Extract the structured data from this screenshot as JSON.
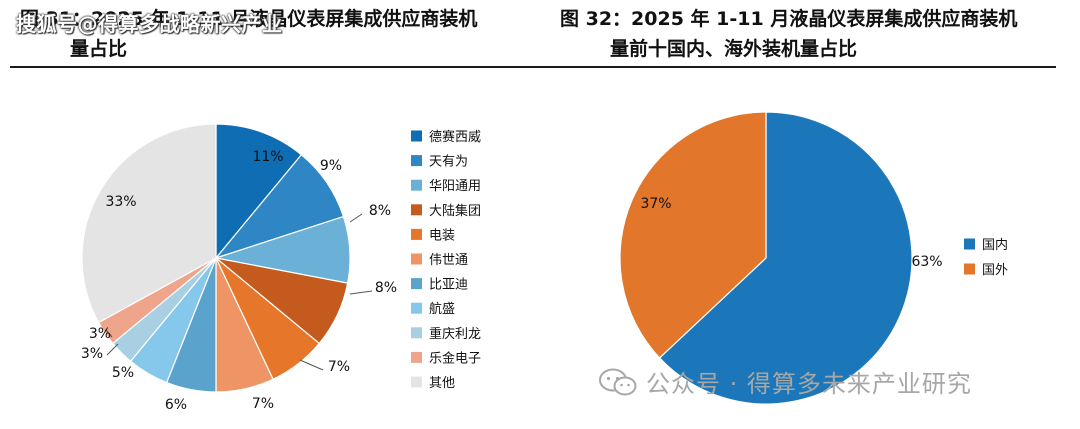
{
  "watermark": {
    "top_left": "搜狐号@得算多战略新兴产业",
    "bottom_right": "公众号 · 得算多未来产业研究"
  },
  "left_title": {
    "line1": "图 31：2025 年 1-11 月液晶仪表屏集成供应商装机",
    "line2": "量占比"
  },
  "right_title": {
    "line1": "图 32：2025 年 1-11 月液晶仪表屏集成供应商装机",
    "line2": "量前十国内、海外装机量占比"
  },
  "chart_data": [
    {
      "type": "pie",
      "title": "",
      "categories": [
        "德赛西威",
        "天有为",
        "华阳通用",
        "大陆集团",
        "电装",
        "伟世通",
        "比亚迪",
        "航盛",
        "重庆利龙",
        "乐金电子",
        "其他"
      ],
      "values": [
        11,
        9,
        8,
        8,
        7,
        7,
        6,
        5,
        3,
        3,
        33
      ],
      "labels": [
        "11%",
        "9%",
        "8%",
        "8%",
        "7%",
        "7%",
        "6%",
        "5%",
        "3%",
        "3%",
        "33%"
      ],
      "colors": [
        "#0f6db4",
        "#2f86c4",
        "#6bb0d7",
        "#c45a1e",
        "#e6762a",
        "#ef9565",
        "#5aa3cd",
        "#86c7ec",
        "#a9cfe3",
        "#efa58c",
        "#e4e4e4"
      ],
      "legend_position": "right"
    },
    {
      "type": "pie",
      "title": "",
      "categories": [
        "国内",
        "国外"
      ],
      "values": [
        63,
        37
      ],
      "labels": [
        "63%",
        "37%"
      ],
      "colors": [
        "#1b77b9",
        "#e2762b"
      ],
      "legend_position": "right"
    }
  ]
}
